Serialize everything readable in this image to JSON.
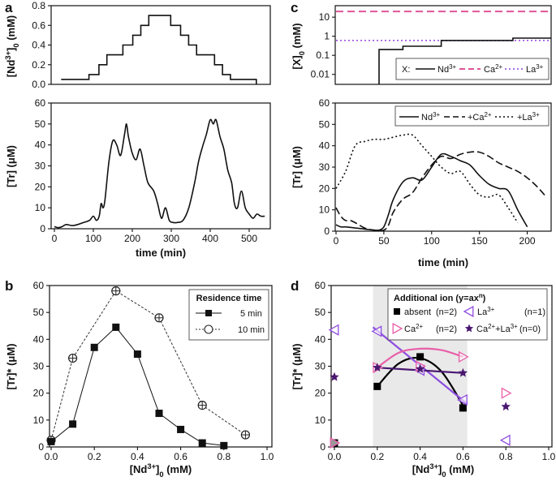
{
  "chart_data": [
    {
      "panel": "a",
      "subplots": [
        {
          "type": "line",
          "style": "step",
          "ylabel": "[Nd3+]0 (mM)",
          "xlabel": "",
          "xlim": [
            0,
            550
          ],
          "ylim": [
            0,
            0.8
          ],
          "yticks": [
            0.0,
            0.2,
            0.4,
            0.6,
            0.8
          ],
          "ytick_labels": [
            "0.0",
            "0.2",
            "0.4",
            "0.6",
            "0.8"
          ],
          "x": [
            25,
            60,
            95,
            120,
            140,
            160,
            180,
            205,
            225,
            245,
            270,
            300,
            325,
            345,
            365,
            385,
            410,
            430,
            450,
            470,
            490,
            515
          ],
          "values": [
            0.05,
            0.05,
            0.1,
            0.2,
            0.3,
            0.3,
            0.4,
            0.5,
            0.6,
            0.7,
            0.7,
            0.6,
            0.5,
            0.4,
            0.3,
            0.3,
            0.2,
            0.1,
            0.05,
            0.05,
            0.05,
            0.0
          ]
        },
        {
          "type": "line",
          "ylabel": "[Tr] (μM)",
          "xlabel": "time (min)",
          "xlim": [
            0,
            550
          ],
          "ylim": [
            0,
            60
          ],
          "xticks": [
            0,
            100,
            200,
            300,
            400,
            500
          ],
          "xtick_labels": [
            "0",
            "100",
            "200",
            "300",
            "400",
            "500"
          ],
          "yticks": [
            0,
            10,
            20,
            30,
            40,
            50,
            60
          ],
          "ytick_labels": [
            "0",
            "10",
            "20",
            "30",
            "40",
            "50",
            "60"
          ],
          "x": [
            0,
            10,
            20,
            30,
            45,
            60,
            75,
            90,
            100,
            108,
            115,
            120,
            125,
            130,
            140,
            150,
            160,
            170,
            180,
            185,
            190,
            200,
            210,
            220,
            230,
            240,
            255,
            265,
            275,
            285,
            295,
            305,
            315,
            330,
            345,
            360,
            370,
            380,
            390,
            400,
            408,
            415,
            425,
            435,
            445,
            455,
            462,
            470,
            480,
            490,
            500,
            510,
            520,
            530,
            540
          ],
          "values": [
            1,
            0.5,
            1,
            2,
            1.5,
            2,
            3,
            4,
            6,
            4,
            6,
            12,
            10,
            14,
            32,
            42,
            40,
            35,
            45,
            50,
            44,
            36,
            33,
            38,
            30,
            22,
            18,
            12,
            5,
            10,
            4,
            3,
            3,
            4,
            10,
            22,
            32,
            39,
            45,
            52,
            50,
            52,
            44,
            38,
            28,
            22,
            12,
            10,
            18,
            10,
            7,
            5,
            7,
            6,
            6
          ]
        }
      ]
    },
    {
      "panel": "b",
      "type": "line",
      "xlabel": "[Nd3+]0 (mM)",
      "ylabel": "[Tr]* (μM)",
      "xlim": [
        0,
        1.0
      ],
      "ylim": [
        0,
        60
      ],
      "xticks": [
        0.0,
        0.2,
        0.4,
        0.6,
        0.8,
        1.0
      ],
      "xtick_labels": [
        "0.0",
        "0.2",
        "0.4",
        "0.6",
        "0.8",
        "1.0"
      ],
      "yticks": [
        0,
        10,
        20,
        30,
        40,
        50,
        60
      ],
      "ytick_labels": [
        "0",
        "10",
        "20",
        "30",
        "40",
        "50",
        "60"
      ],
      "legend_title": "Residence time",
      "legend_position": "top-right",
      "series": [
        {
          "name": "5 min",
          "marker": "filled-square",
          "line": "solid",
          "x": [
            0.0,
            0.1,
            0.2,
            0.3,
            0.4,
            0.5,
            0.6,
            0.7,
            0.8
          ],
          "values": [
            2,
            8.5,
            37,
            44.5,
            34.5,
            12.5,
            6.5,
            1.5,
            0.5
          ]
        },
        {
          "name": "10 min",
          "marker": "open-circle",
          "line": "dotted",
          "x": [
            0.0,
            0.1,
            0.3,
            0.5,
            0.7,
            0.9
          ],
          "values": [
            2.5,
            33,
            58,
            48,
            15.5,
            4.5
          ]
        }
      ]
    },
    {
      "panel": "c",
      "subplots": [
        {
          "type": "line",
          "scale": "log",
          "ylabel": "[X]0 (mM)",
          "xlabel": "",
          "xlim": [
            0,
            225
          ],
          "ylim": [
            0.003,
            40
          ],
          "yticks": [
            0.01,
            0.1,
            1,
            10
          ],
          "ytick_labels": [
            "0.01",
            "0.1",
            "1",
            "10"
          ],
          "legend_prefix": "X:",
          "legend_position": "bottom-right",
          "series": [
            {
              "name": "Nd3+",
              "color": "#000000",
              "line": "solid",
              "style": "step",
              "x": [
                45,
                70,
                110,
                185,
                225
              ],
              "values": [
                0.2,
                0.3,
                0.6,
                0.8,
                0.8
              ]
            },
            {
              "name": "Ca2+",
              "color": "#e0559a",
              "line": "dashed",
              "x": [
                0,
                225
              ],
              "values": [
                20,
                20
              ]
            },
            {
              "name": "La3+",
              "color": "#a35fe0",
              "line": "dotted",
              "x": [
                0,
                225
              ],
              "values": [
                0.6,
                0.6
              ]
            }
          ]
        },
        {
          "type": "line",
          "ylabel": "[Tr] (μM)",
          "xlabel": "time (min)",
          "xlim": [
            0,
            225
          ],
          "ylim": [
            0,
            60
          ],
          "xticks": [
            0,
            50,
            100,
            150,
            200
          ],
          "xtick_labels": [
            "0",
            "50",
            "100",
            "150",
            "200"
          ],
          "yticks": [
            0,
            10,
            20,
            30,
            40,
            50,
            60
          ],
          "ytick_labels": [
            "0",
            "10",
            "20",
            "30",
            "40",
            "50",
            "60"
          ],
          "legend_position": "top-right",
          "series": [
            {
              "name": "Nd3+",
              "line": "solid",
              "x": [
                0,
                5,
                10,
                20,
                30,
                40,
                45,
                50,
                55,
                60,
                70,
                80,
                90,
                100,
                110,
                120,
                130,
                140,
                150,
                160,
                170,
                180,
                190,
                200
              ],
              "values": [
                3,
                2,
                2,
                1.5,
                1,
                0.5,
                0.5,
                2,
                8,
                15,
                23,
                25,
                24,
                30,
                36,
                35,
                33,
                31,
                26,
                22,
                20,
                19,
                10,
                2
              ]
            },
            {
              "name": "+Ca2+",
              "line": "dashed",
              "x": [
                0,
                5,
                10,
                15,
                20,
                30,
                40,
                50,
                55,
                60,
                70,
                80,
                90,
                100,
                110,
                120,
                130,
                140,
                150,
                160,
                170,
                180,
                190,
                200,
                210,
                220
              ],
              "values": [
                11,
                7,
                5,
                5,
                4,
                1.5,
                0.5,
                0.5,
                3,
                9,
                15,
                18,
                25,
                31,
                35,
                34,
                36,
                37,
                37,
                35,
                32,
                30,
                28,
                25,
                21,
                16
              ]
            },
            {
              "name": "+La3+",
              "line": "dotted",
              "x": [
                0,
                10,
                20,
                30,
                40,
                50,
                60,
                70,
                80,
                90,
                100,
                110,
                120,
                130,
                140,
                150,
                160,
                170,
                180,
                190
              ],
              "values": [
                20,
                28,
                40,
                42,
                43,
                43,
                44,
                45,
                45,
                40,
                35,
                30,
                27,
                28,
                22,
                17,
                16,
                17,
                11,
                4
              ]
            }
          ]
        }
      ]
    },
    {
      "panel": "d",
      "type": "scatter",
      "xlabel": "[Nd3+]0 (mM)",
      "ylabel": "[Tr]* (μM)",
      "xlim": [
        0,
        1.0
      ],
      "ylim": [
        0,
        60
      ],
      "xticks": [
        0.0,
        0.2,
        0.4,
        0.6,
        0.8,
        1.0
      ],
      "xtick_labels": [
        "0.0",
        "0.2",
        "0.4",
        "0.6",
        "0.8",
        "1.0"
      ],
      "yticks": [
        0,
        10,
        20,
        30,
        40,
        50,
        60
      ],
      "ytick_labels": [
        "0",
        "10",
        "20",
        "30",
        "40",
        "50",
        "60"
      ],
      "shaded_x_range": [
        0.18,
        0.62
      ],
      "legend_title": "Additional ion (y=axⁿ)",
      "legend_position": "top-center",
      "series": [
        {
          "name": "absent",
          "n_label": "(n=2)",
          "marker": "filled-square",
          "color": "#000000",
          "x": [
            0.0,
            0.2,
            0.4,
            0.6
          ],
          "values": [
            1.5,
            22.5,
            33.5,
            14.5
          ],
          "fit": {
            "x": [
              0.2,
              0.3,
              0.4,
              0.5,
              0.6
            ],
            "values": [
              22.5,
              31,
              33,
              28,
              15.5
            ]
          }
        },
        {
          "name": "La3+",
          "n_label": "(n=1)",
          "marker": "open-triangle-left",
          "color": "#8f4de0",
          "x": [
            0.0,
            0.2,
            0.4,
            0.6,
            0.8
          ],
          "values": [
            43.5,
            43,
            28.5,
            17.5,
            2.5
          ],
          "fit": {
            "x": [
              0.18,
              0.62
            ],
            "values": [
              44.5,
              16
            ]
          }
        },
        {
          "name": "Ca2+",
          "n_label": "(n=2)",
          "marker": "open-triangle-right",
          "color": "#e85fa8",
          "x": [
            0.0,
            0.2,
            0.4,
            0.6,
            0.8
          ],
          "values": [
            1.5,
            29.5,
            30,
            33.5,
            20
          ],
          "fit": {
            "x": [
              0.2,
              0.3,
              0.4,
              0.5,
              0.6
            ],
            "values": [
              29.5,
              35,
              36.5,
              36,
              33.5
            ]
          }
        },
        {
          "name": "Ca2++La3+",
          "n_label": "(n=0)",
          "marker": "filled-star",
          "color": "#4a1870",
          "x": [
            0.0,
            0.2,
            0.4,
            0.6,
            0.8
          ],
          "values": [
            26,
            29.5,
            29,
            27.5,
            15
          ],
          "fit": {
            "x": [
              0.2,
              0.6
            ],
            "values": [
              29.5,
              27.5
            ]
          }
        }
      ]
    }
  ],
  "labels": {
    "a": "a",
    "b": "b",
    "c": "c",
    "d": "d",
    "a_top_ylabel": "[Nd3+]0 (mM)",
    "a_bot_ylabel": "[Tr] (μM)",
    "a_xlabel": "time (min)",
    "b_ylabel": "[Tr]* (μM)",
    "b_xlabel": "[Nd3+]0 (mM)",
    "b_legend_title": "Residence time",
    "b_legend_5": "5 min",
    "b_legend_10": "10 min",
    "c_top_ylabel": "[X]0 (mM)",
    "c_bot_ylabel": "[Tr] (μM)",
    "c_xlabel": "time (min)",
    "c_top_legend_prefix": "X:",
    "c_top_legend_nd": "Nd3+",
    "c_top_legend_ca": "Ca2+",
    "c_top_legend_la": "La3+",
    "c_bot_legend_nd": "Nd3+",
    "c_bot_legend_ca": "+Ca2+",
    "c_bot_legend_la": "+La3+",
    "d_ylabel": "[Tr]* (μM)",
    "d_xlabel": "[Nd3+]0 (mM)",
    "d_legend_title": "Additional ion (y=axⁿ)",
    "d_leg_absent": "absent",
    "d_leg_absent_n": "(n=2)",
    "d_leg_la": "La3+",
    "d_leg_la_n": "(n=1)",
    "d_leg_ca": "Ca2+",
    "d_leg_ca_n": "(n=2)",
    "d_leg_cala": "Ca2++La3+",
    "d_leg_cala_n": "(n=0)"
  }
}
